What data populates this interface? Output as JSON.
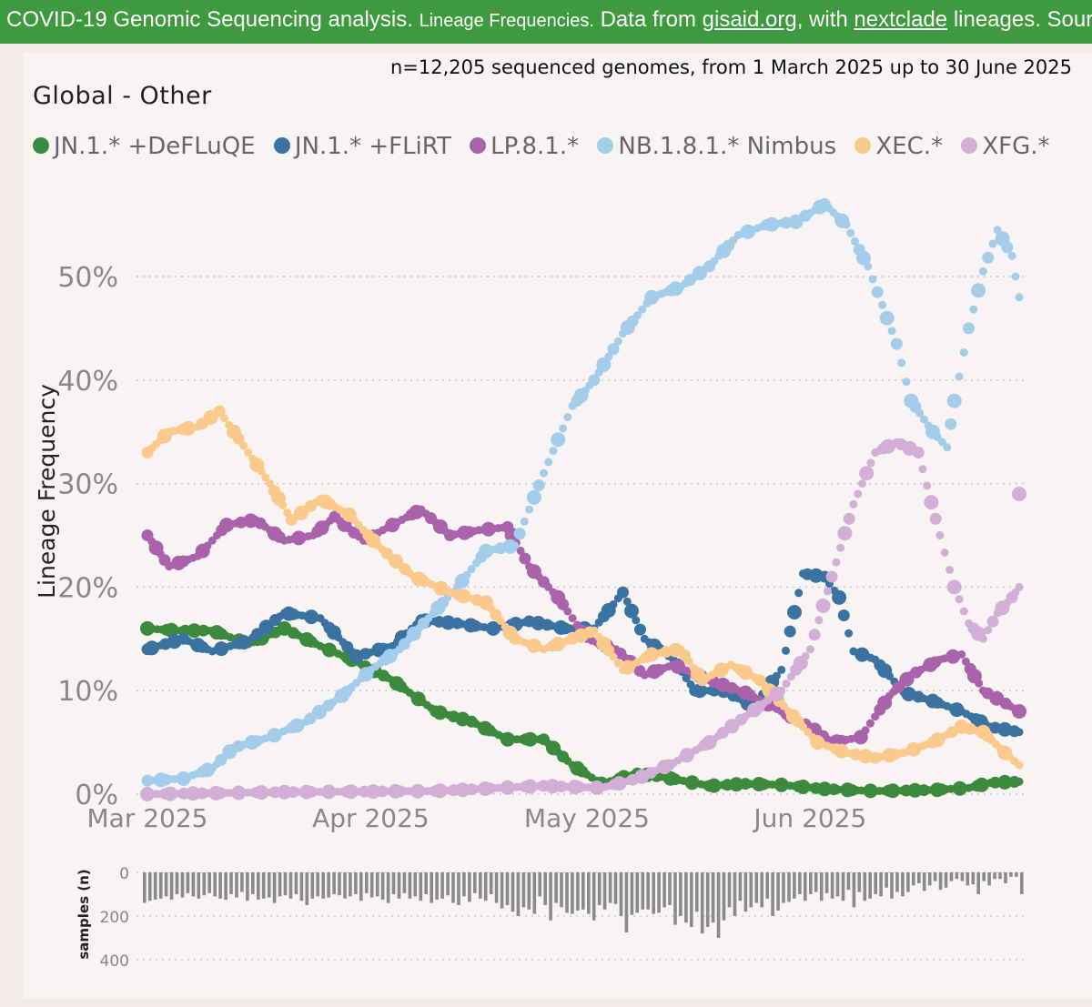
{
  "header": {
    "main": "COVID-19 Genomic Sequencing analysis.",
    "sub": "Lineage Frequencies.",
    "data_from": "Data from",
    "link1": "gisaid.org",
    "with": ", with",
    "link2": "nextclade",
    "tail": "lineages. Source"
  },
  "subtitle": "n=12,205 sequenced genomes, from 1 March 2025 up to 30 June 2025",
  "region": "Global - Other",
  "colors": {
    "JN.1.* +DeFLuQE": "#3b8a3e",
    "JN.1.* +FLiRT": "#3a73a2",
    "LP.8.1.*": "#ab62ad",
    "NB.1.8.1.* Nimbus": "#a3cdea",
    "XEC.*": "#fbc98b",
    "XFG.*": "#d3aed6",
    "bars": "#8a8a8a",
    "grid": "#c8c8c8",
    "tick_text": "#888888"
  },
  "chart_data": [
    {
      "type": "scatter",
      "ylabel": "Lineage Frequency",
      "xlabel": "",
      "x_range": [
        "2025-03-01",
        "2025-06-30"
      ],
      "x_ticks": [
        "Mar 2025",
        "Apr 2025",
        "May 2025",
        "Jun 2025"
      ],
      "y_ticks": [
        "0%",
        "10%",
        "20%",
        "30%",
        "40%",
        "50%"
      ],
      "ylim": [
        0,
        58
      ],
      "grid": "horizontal dotted",
      "legend": "top",
      "series": [
        {
          "name": "JN.1.* +DeFLuQE",
          "points": [
            [
              "2025-03-01",
              16
            ],
            [
              "2025-03-05",
              15.8
            ],
            [
              "2025-03-10",
              15.8
            ],
            [
              "2025-03-15",
              14.5
            ],
            [
              "2025-03-20",
              16
            ],
            [
              "2025-03-25",
              14.3
            ],
            [
              "2025-03-30",
              12.8
            ],
            [
              "2025-04-04",
              11
            ],
            [
              "2025-04-10",
              8
            ],
            [
              "2025-04-15",
              7
            ],
            [
              "2025-04-20",
              5.3
            ],
            [
              "2025-04-25",
              5.3
            ],
            [
              "2025-04-29",
              2.8
            ],
            [
              "2025-05-03",
              1
            ],
            [
              "2025-05-08",
              2
            ],
            [
              "2025-05-12",
              1.6
            ],
            [
              "2025-05-18",
              0.8
            ],
            [
              "2025-05-23",
              1
            ],
            [
              "2025-05-28",
              0.9
            ],
            [
              "2025-06-03",
              0.5
            ],
            [
              "2025-06-10",
              0.3
            ],
            [
              "2025-06-18",
              0.4
            ],
            [
              "2025-06-23",
              0.6
            ],
            [
              "2025-06-26",
              1.1
            ],
            [
              "2025-06-30",
              1.2
            ]
          ]
        },
        {
          "name": "JN.1.* +FLiRT",
          "points": [
            [
              "2025-03-01",
              14
            ],
            [
              "2025-03-06",
              15
            ],
            [
              "2025-03-10",
              13.8
            ],
            [
              "2025-03-15",
              14.8
            ],
            [
              "2025-03-20",
              17.5
            ],
            [
              "2025-03-25",
              17
            ],
            [
              "2025-03-30",
              13.3
            ],
            [
              "2025-04-04",
              14.3
            ],
            [
              "2025-04-08",
              16.8
            ],
            [
              "2025-04-13",
              16.5
            ],
            [
              "2025-04-18",
              16
            ],
            [
              "2025-04-23",
              16.7
            ],
            [
              "2025-04-28",
              16
            ],
            [
              "2025-05-02",
              16
            ],
            [
              "2025-05-06",
              19.5
            ],
            [
              "2025-05-09",
              15
            ],
            [
              "2025-05-13",
              13
            ],
            [
              "2025-05-16",
              10
            ],
            [
              "2025-05-20",
              10
            ],
            [
              "2025-05-24",
              8.5
            ],
            [
              "2025-05-28",
              12
            ],
            [
              "2025-05-31",
              21.3
            ],
            [
              "2025-06-03",
              21
            ],
            [
              "2025-06-05",
              19
            ],
            [
              "2025-06-07",
              13.8
            ],
            [
              "2025-06-10",
              13
            ],
            [
              "2025-06-14",
              9.8
            ],
            [
              "2025-06-18",
              9
            ],
            [
              "2025-06-22",
              8
            ],
            [
              "2025-06-26",
              6.5
            ],
            [
              "2025-06-30",
              6
            ]
          ]
        },
        {
          "name": "LP.8.1.*",
          "points": [
            [
              "2025-03-01",
              25
            ],
            [
              "2025-03-04",
              22
            ],
            [
              "2025-03-08",
              23
            ],
            [
              "2025-03-12",
              26
            ],
            [
              "2025-03-16",
              26.5
            ],
            [
              "2025-03-20",
              24.5
            ],
            [
              "2025-03-24",
              25
            ],
            [
              "2025-03-27",
              26.8
            ],
            [
              "2025-03-31",
              24.5
            ],
            [
              "2025-04-04",
              26
            ],
            [
              "2025-04-08",
              27.5
            ],
            [
              "2025-04-12",
              25
            ],
            [
              "2025-04-16",
              25.5
            ],
            [
              "2025-04-20",
              25.8
            ],
            [
              "2025-04-23",
              22
            ],
            [
              "2025-04-27",
              19
            ],
            [
              "2025-05-01",
              15
            ],
            [
              "2025-05-05",
              14
            ],
            [
              "2025-05-09",
              11.5
            ],
            [
              "2025-05-13",
              12.5
            ],
            [
              "2025-05-18",
              11
            ],
            [
              "2025-05-23",
              9.8
            ],
            [
              "2025-05-28",
              8
            ],
            [
              "2025-06-01",
              6.5
            ],
            [
              "2025-06-04",
              5
            ],
            [
              "2025-06-08",
              5.5
            ],
            [
              "2025-06-12",
              9.5
            ],
            [
              "2025-06-15",
              11.5
            ],
            [
              "2025-06-19",
              13
            ],
            [
              "2025-06-22",
              13.5
            ],
            [
              "2025-06-25",
              10
            ],
            [
              "2025-06-30",
              8
            ]
          ]
        },
        {
          "name": "NB.1.8.1.* Nimbus",
          "points": [
            [
              "2025-03-01",
              1.3
            ],
            [
              "2025-03-06",
              1.5
            ],
            [
              "2025-03-10",
              2.5
            ],
            [
              "2025-03-13",
              4.5
            ],
            [
              "2025-03-18",
              5.5
            ],
            [
              "2025-03-23",
              7
            ],
            [
              "2025-03-28",
              9.5
            ],
            [
              "2025-04-01",
              12
            ],
            [
              "2025-04-05",
              14
            ],
            [
              "2025-04-09",
              17
            ],
            [
              "2025-04-13",
              20
            ],
            [
              "2025-04-17",
              23.5
            ],
            [
              "2025-04-21",
              24
            ],
            [
              "2025-04-25",
              31
            ],
            [
              "2025-04-29",
              37.5
            ],
            [
              "2025-05-02",
              40
            ],
            [
              "2025-05-06",
              44.5
            ],
            [
              "2025-05-10",
              48
            ],
            [
              "2025-05-14",
              49
            ],
            [
              "2025-05-18",
              51
            ],
            [
              "2025-05-22",
              54
            ],
            [
              "2025-05-26",
              55
            ],
            [
              "2025-05-30",
              55.3
            ],
            [
              "2025-06-03",
              57
            ],
            [
              "2025-06-06",
              55
            ],
            [
              "2025-06-09",
              51
            ],
            [
              "2025-06-13",
              43.5
            ],
            [
              "2025-06-15",
              38
            ],
            [
              "2025-06-18",
              35
            ],
            [
              "2025-06-20",
              33.5
            ],
            [
              "2025-06-21",
              38
            ],
            [
              "2025-06-23",
              45
            ],
            [
              "2025-06-25",
              50.5
            ],
            [
              "2025-06-27",
              54.5
            ],
            [
              "2025-06-29",
              52
            ],
            [
              "2025-06-30",
              48
            ]
          ]
        },
        {
          "name": "XEC.*",
          "points": [
            [
              "2025-03-01",
              33
            ],
            [
              "2025-03-04",
              35
            ],
            [
              "2025-03-08",
              35.5
            ],
            [
              "2025-03-11",
              37
            ],
            [
              "2025-03-15",
              33
            ],
            [
              "2025-03-18",
              30
            ],
            [
              "2025-03-21",
              26.5
            ],
            [
              "2025-03-25",
              28.5
            ],
            [
              "2025-03-29",
              27
            ],
            [
              "2025-04-02",
              24
            ],
            [
              "2025-04-07",
              21
            ],
            [
              "2025-04-12",
              19.5
            ],
            [
              "2025-04-17",
              18.5
            ],
            [
              "2025-04-21",
              15
            ],
            [
              "2025-04-25",
              14
            ],
            [
              "2025-04-29",
              15
            ],
            [
              "2025-05-02",
              15.8
            ],
            [
              "2025-05-06",
              12
            ],
            [
              "2025-05-10",
              13.5
            ],
            [
              "2025-05-14",
              14
            ],
            [
              "2025-05-17",
              11
            ],
            [
              "2025-05-21",
              12.5
            ],
            [
              "2025-05-25",
              11
            ],
            [
              "2025-05-29",
              8
            ],
            [
              "2025-06-02",
              5
            ],
            [
              "2025-06-06",
              4
            ],
            [
              "2025-06-10",
              3.5
            ],
            [
              "2025-06-14",
              4
            ],
            [
              "2025-06-18",
              5
            ],
            [
              "2025-06-22",
              6.5
            ],
            [
              "2025-06-25",
              6
            ],
            [
              "2025-06-28",
              4
            ],
            [
              "2025-06-30",
              2.8
            ]
          ]
        },
        {
          "name": "XFG.*",
          "points": [
            [
              "2025-03-01",
              0
            ],
            [
              "2025-03-20",
              0.2
            ],
            [
              "2025-04-10",
              0.3
            ],
            [
              "2025-04-25",
              0.8
            ],
            [
              "2025-05-03",
              0.6
            ],
            [
              "2025-05-08",
              1.5
            ],
            [
              "2025-05-13",
              3
            ],
            [
              "2025-05-18",
              5
            ],
            [
              "2025-05-23",
              7.5
            ],
            [
              "2025-05-28",
              10
            ],
            [
              "2025-06-01",
              14
            ],
            [
              "2025-06-04",
              21
            ],
            [
              "2025-06-07",
              28
            ],
            [
              "2025-06-10",
              33
            ],
            [
              "2025-06-13",
              34
            ],
            [
              "2025-06-16",
              33
            ],
            [
              "2025-06-19",
              25
            ],
            [
              "2025-06-21",
              20
            ],
            [
              "2025-06-23",
              16.5
            ],
            [
              "2025-06-25",
              15
            ],
            [
              "2025-06-27",
              17.5
            ],
            [
              "2025-06-29",
              19
            ],
            [
              "2025-06-30",
              20
            ],
            [
              "2025-06-30",
              29
            ]
          ]
        }
      ]
    },
    {
      "type": "bar",
      "ylabel": "samples (n)",
      "y_ticks": [
        "0",
        "200",
        "400"
      ],
      "ylim": [
        0,
        450
      ],
      "values": [
        140,
        130,
        125,
        120,
        110,
        125,
        100,
        115,
        95,
        110,
        120,
        105,
        95,
        110,
        120,
        125,
        100,
        115,
        90,
        130,
        100,
        125,
        120,
        115,
        140,
        110,
        105,
        120,
        100,
        130,
        150,
        120,
        110,
        120,
        115,
        100,
        105,
        120,
        110,
        100,
        130,
        95,
        115,
        110,
        125,
        140,
        100,
        120,
        95,
        120,
        110,
        130,
        100,
        140,
        125,
        120,
        105,
        140,
        150,
        110,
        135,
        95,
        120,
        130,
        100,
        140,
        165,
        150,
        180,
        200,
        160,
        170,
        190,
        110,
        150,
        220,
        140,
        160,
        185,
        190,
        175,
        170,
        190,
        220,
        150,
        170,
        140,
        145,
        200,
        275,
        195,
        185,
        170,
        170,
        190,
        185,
        160,
        150,
        240,
        200,
        230,
        250,
        180,
        280,
        250,
        230,
        300,
        220,
        160,
        200,
        130,
        180,
        160,
        140,
        160,
        120,
        200,
        175,
        140,
        135,
        120,
        100,
        130,
        100,
        90,
        130,
        95,
        120,
        110,
        130,
        80,
        160,
        90,
        130,
        120,
        100,
        110,
        70,
        120,
        90,
        110,
        90,
        60,
        50,
        85,
        60,
        40,
        80,
        70,
        40,
        30,
        40,
        60,
        55,
        100,
        40,
        60,
        30,
        30,
        50,
        20,
        20,
        100
      ]
    }
  ]
}
